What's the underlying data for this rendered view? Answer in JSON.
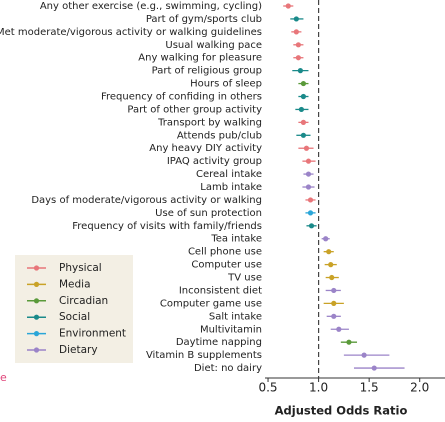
{
  "chart_data": {
    "type": "forest",
    "categories": [
      "Any other exercise (e.g., swimming, cycling)",
      "Part of gym/sports club",
      "Met moderate/vigorous activity or walking guidelines",
      "Usual walking pace",
      "Any walking for pleasure",
      "Part of religious group",
      "Hours of sleep",
      "Frequency of confiding in others",
      "Part of other group activity",
      "Transport by walking",
      "Attends pub/club",
      "Any heavy DIY activity",
      "IPAQ activity group",
      "Cereal intake",
      "Lamb intake",
      "Days of moderate/vigorous activity or walking",
      "Use of sun protection",
      "Frequency of visits with family/friends",
      "Tea intake",
      "Cell phone use",
      "Computer use",
      "TV use",
      "Inconsistent diet",
      "Computer game use",
      "Salt intake",
      "Multivitamin",
      "Daytime napping",
      "Vitamin B supplements",
      "Diet: no dairy"
    ],
    "series": [
      {
        "name": "Physical",
        "color": "#e8767a",
        "values": [
          0.7,
          null,
          0.78,
          0.8,
          0.8,
          null,
          null,
          null,
          null,
          0.85,
          null,
          0.88,
          0.9,
          null,
          null,
          0.92,
          null,
          null,
          null,
          null,
          null,
          null,
          null,
          null,
          null,
          null,
          null,
          null,
          null
        ],
        "lower": [
          0.65,
          null,
          0.73,
          0.75,
          0.75,
          null,
          null,
          null,
          null,
          0.8,
          null,
          0.8,
          0.84,
          null,
          null,
          0.87,
          null,
          null,
          null,
          null,
          null,
          null,
          null,
          null,
          null,
          null,
          null,
          null,
          null
        ],
        "upper": [
          0.75,
          null,
          0.83,
          0.85,
          0.85,
          null,
          null,
          null,
          null,
          0.9,
          null,
          0.95,
          0.97,
          null,
          null,
          0.97,
          null,
          null,
          null,
          null,
          null,
          null,
          null,
          null,
          null,
          null,
          null,
          null,
          null
        ]
      },
      {
        "name": "Media",
        "color": "#c9a227",
        "values": [
          null,
          null,
          null,
          null,
          null,
          null,
          null,
          null,
          null,
          null,
          null,
          null,
          null,
          null,
          null,
          null,
          null,
          null,
          null,
          1.1,
          1.12,
          1.13,
          null,
          1.15,
          null,
          null,
          null,
          null,
          null
        ],
        "lower": [
          null,
          null,
          null,
          null,
          null,
          null,
          null,
          null,
          null,
          null,
          null,
          null,
          null,
          null,
          null,
          null,
          null,
          null,
          null,
          1.05,
          1.06,
          1.07,
          null,
          1.05,
          null,
          null,
          null,
          null,
          null
        ],
        "upper": [
          null,
          null,
          null,
          null,
          null,
          null,
          null,
          null,
          null,
          null,
          null,
          null,
          null,
          null,
          null,
          null,
          null,
          null,
          null,
          1.15,
          1.18,
          1.2,
          null,
          1.25,
          null,
          null,
          null,
          null,
          null
        ]
      },
      {
        "name": "Circadian",
        "color": "#5a9a3a",
        "values": [
          null,
          null,
          null,
          null,
          null,
          null,
          0.85,
          null,
          null,
          null,
          null,
          null,
          null,
          null,
          null,
          null,
          null,
          null,
          null,
          null,
          null,
          null,
          null,
          null,
          null,
          null,
          1.3,
          null,
          null
        ],
        "lower": [
          null,
          null,
          null,
          null,
          null,
          null,
          0.8,
          null,
          null,
          null,
          null,
          null,
          null,
          null,
          null,
          null,
          null,
          null,
          null,
          null,
          null,
          null,
          null,
          null,
          null,
          null,
          1.22,
          null,
          null
        ],
        "upper": [
          null,
          null,
          null,
          null,
          null,
          null,
          0.9,
          null,
          null,
          null,
          null,
          null,
          null,
          null,
          null,
          null,
          null,
          null,
          null,
          null,
          null,
          null,
          null,
          null,
          null,
          null,
          1.38,
          null,
          null
        ]
      },
      {
        "name": "Social",
        "color": "#1a8a8a",
        "values": [
          null,
          0.78,
          null,
          null,
          null,
          0.82,
          null,
          0.85,
          0.83,
          null,
          0.85,
          null,
          null,
          null,
          null,
          null,
          null,
          0.93,
          null,
          null,
          null,
          null,
          null,
          null,
          null,
          null,
          null,
          null,
          null
        ],
        "lower": [
          null,
          0.72,
          null,
          null,
          null,
          0.74,
          null,
          0.8,
          0.77,
          null,
          0.78,
          null,
          null,
          null,
          null,
          null,
          null,
          0.88,
          null,
          null,
          null,
          null,
          null,
          null,
          null,
          null,
          null,
          null,
          null
        ],
        "upper": [
          null,
          0.85,
          null,
          null,
          null,
          0.9,
          null,
          0.9,
          0.9,
          null,
          0.92,
          null,
          null,
          null,
          null,
          null,
          null,
          0.98,
          null,
          null,
          null,
          null,
          null,
          null,
          null,
          null,
          null,
          null,
          null
        ]
      },
      {
        "name": "Environment",
        "color": "#2aa6d8",
        "values": [
          null,
          null,
          null,
          null,
          null,
          null,
          null,
          null,
          null,
          null,
          null,
          null,
          null,
          null,
          null,
          null,
          0.92,
          null,
          null,
          null,
          null,
          null,
          null,
          null,
          null,
          null,
          null,
          null,
          null
        ],
        "lower": [
          null,
          null,
          null,
          null,
          null,
          null,
          null,
          null,
          null,
          null,
          null,
          null,
          null,
          null,
          null,
          null,
          0.87,
          null,
          null,
          null,
          null,
          null,
          null,
          null,
          null,
          null,
          null,
          null,
          null
        ],
        "upper": [
          null,
          null,
          null,
          null,
          null,
          null,
          null,
          null,
          null,
          null,
          null,
          null,
          null,
          null,
          null,
          null,
          0.97,
          null,
          null,
          null,
          null,
          null,
          null,
          null,
          null,
          null,
          null,
          null,
          null
        ]
      },
      {
        "name": "Dietary",
        "color": "#9b84c8",
        "values": [
          null,
          null,
          null,
          null,
          null,
          null,
          null,
          null,
          null,
          null,
          null,
          null,
          null,
          0.9,
          0.9,
          null,
          null,
          null,
          1.07,
          null,
          null,
          null,
          1.15,
          null,
          1.15,
          1.2,
          null,
          1.45,
          1.55
        ],
        "lower": [
          null,
          null,
          null,
          null,
          null,
          null,
          null,
          null,
          null,
          null,
          null,
          null,
          null,
          0.85,
          0.84,
          null,
          null,
          null,
          1.03,
          null,
          null,
          null,
          1.07,
          null,
          1.08,
          1.12,
          null,
          1.25,
          1.35
        ],
        "upper": [
          null,
          null,
          null,
          null,
          null,
          null,
          null,
          null,
          null,
          null,
          null,
          null,
          null,
          0.95,
          0.96,
          null,
          null,
          null,
          1.11,
          null,
          null,
          null,
          1.22,
          null,
          1.22,
          1.3,
          null,
          1.7,
          1.85
        ]
      }
    ],
    "reference": 1.0,
    "xlim": [
      0.47,
      2.25
    ],
    "xticks": [
      0.5,
      {
        "value": 1.0,
        "label": "1.0"
      },
      1.5,
      {
        "value": 2.0,
        "label": "2.0"
      }
    ],
    "xlabel": "Adjusted Odds Ratio",
    "fragment": "e"
  }
}
